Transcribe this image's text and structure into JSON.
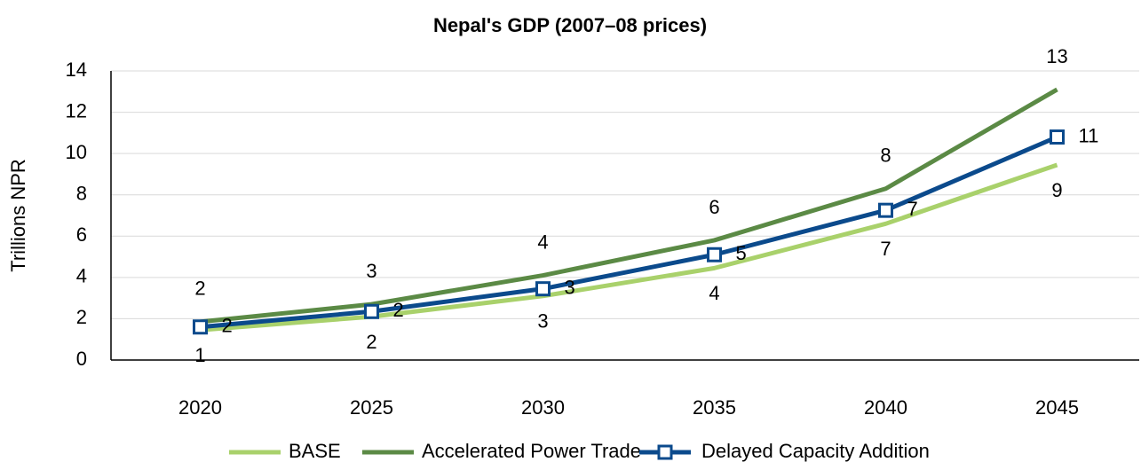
{
  "chart_data": {
    "type": "line",
    "title": "Nepal's GDP (2007–08 prices)",
    "y_label": "Trillions NPR",
    "categories": [
      "2020",
      "2025",
      "2030",
      "2035",
      "2040",
      "2045"
    ],
    "series": [
      {
        "name": "BASE",
        "color": "#a9d16b",
        "values": [
          1.45,
          2.1,
          3.1,
          4.45,
          6.6,
          9.45
        ],
        "value_labels": [
          "1",
          "2",
          "3",
          "4",
          "7",
          "9"
        ]
      },
      {
        "name": "Accelerated Power Trade",
        "color": "#5b8a45",
        "values": [
          1.85,
          2.7,
          4.1,
          5.8,
          8.3,
          13.1
        ],
        "value_labels": [
          "2",
          "3",
          "4",
          "6",
          "8",
          "13"
        ]
      },
      {
        "name": "Delayed Capacity Addition",
        "color": "#0b4a8c",
        "marker": "square",
        "values": [
          1.6,
          2.35,
          3.45,
          5.1,
          7.25,
          10.8
        ],
        "value_labels": [
          "2",
          "2",
          "3",
          "5",
          "7",
          "11"
        ]
      }
    ],
    "ylim": [
      0,
      14
    ],
    "yticks": [
      0,
      2,
      4,
      6,
      8,
      10,
      12,
      14
    ],
    "grid": true,
    "legend": "bottom"
  }
}
